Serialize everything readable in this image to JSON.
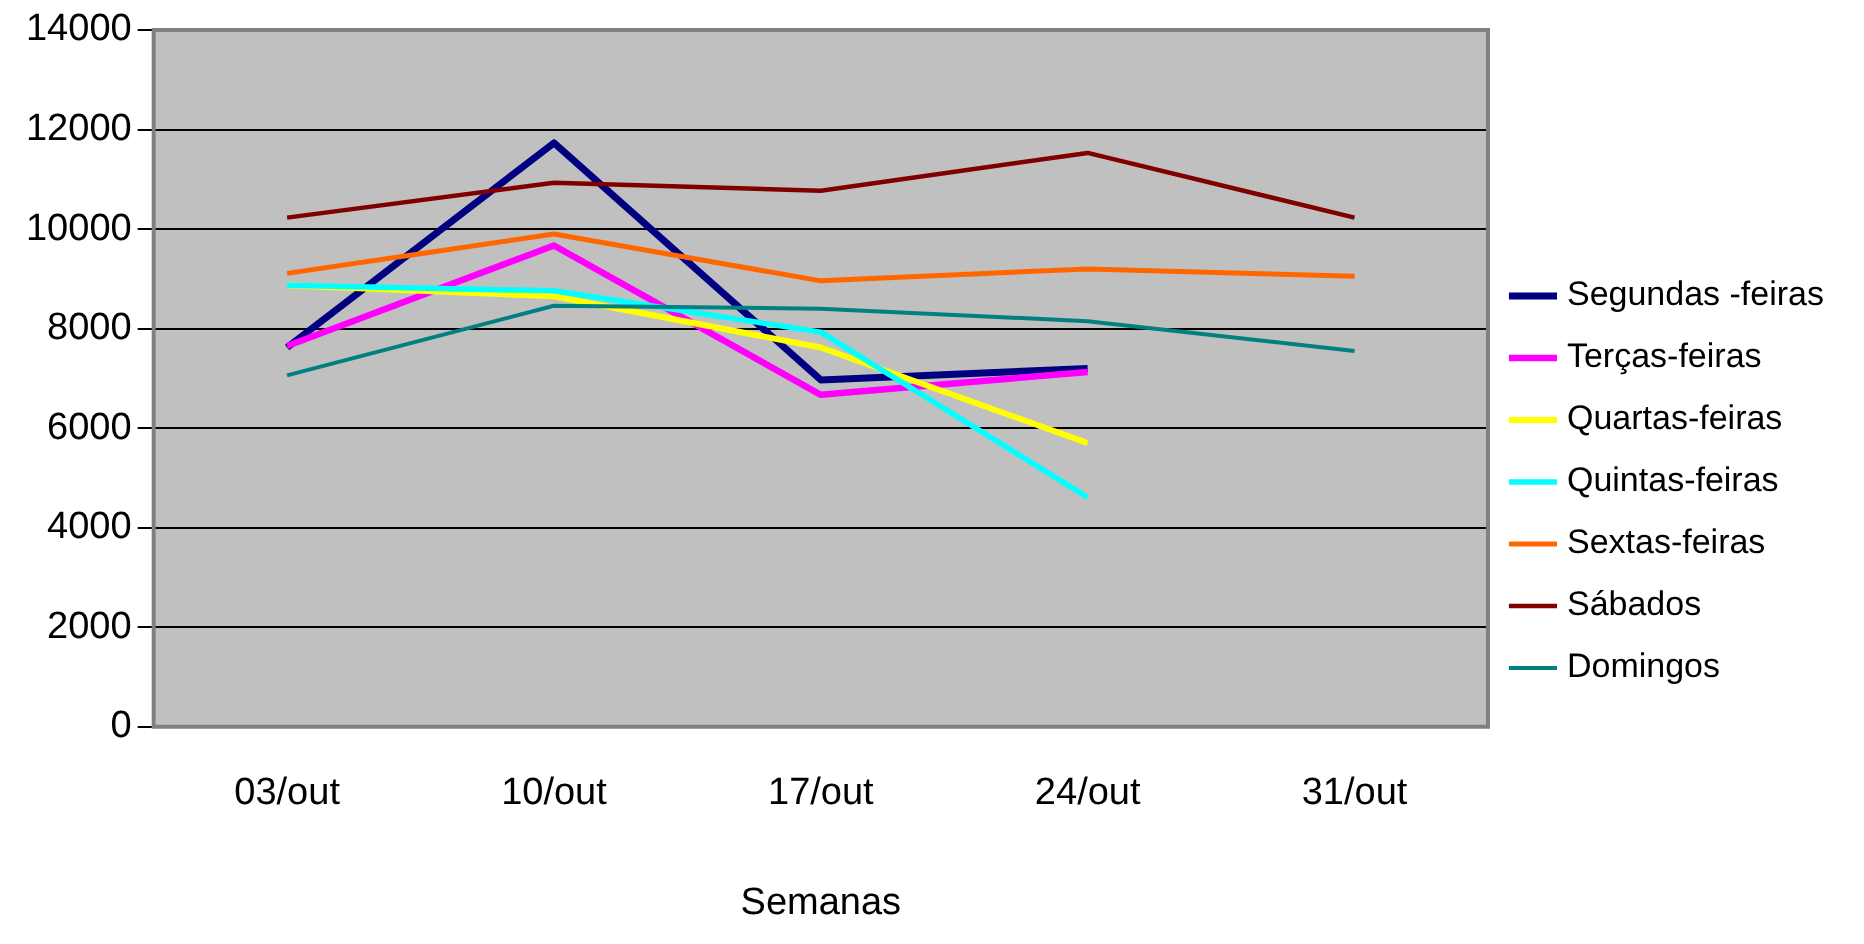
{
  "chart_data": {
    "type": "line",
    "xlabel": "Semanas",
    "categories": [
      "03/out",
      "10/out",
      "17/out",
      "24/out",
      "31/out"
    ],
    "series": [
      {
        "name": "Segundas -feiras",
        "color": "#000080",
        "values": [
          7620,
          11730,
          6970,
          7200,
          null
        ]
      },
      {
        "name": "Terças-feiras",
        "color": "#ff00ff",
        "values": [
          7650,
          9670,
          6670,
          7130,
          null
        ]
      },
      {
        "name": "Quartas-feiras",
        "color": "#ffff00",
        "values": [
          8870,
          8650,
          7620,
          5700,
          null
        ]
      },
      {
        "name": "Quintas-feiras",
        "color": "#00ffff",
        "values": [
          8870,
          8760,
          7930,
          4610,
          null
        ]
      },
      {
        "name": "Sextas-feiras",
        "color": "#ff6600",
        "values": [
          9110,
          9900,
          8960,
          9200,
          9050
        ]
      },
      {
        "name": "Sábados",
        "color": "#800000",
        "values": [
          10230,
          10930,
          10770,
          11530,
          10230
        ]
      },
      {
        "name": "Domingos",
        "color": "#008080",
        "values": [
          7060,
          8460,
          8400,
          8150,
          7550
        ]
      }
    ],
    "ylim": [
      0,
      14000
    ],
    "yticks": [
      0,
      2000,
      4000,
      6000,
      8000,
      10000,
      12000,
      14000
    ],
    "grid": "y",
    "legend": "right",
    "marker": "none",
    "line_style": "solid"
  }
}
